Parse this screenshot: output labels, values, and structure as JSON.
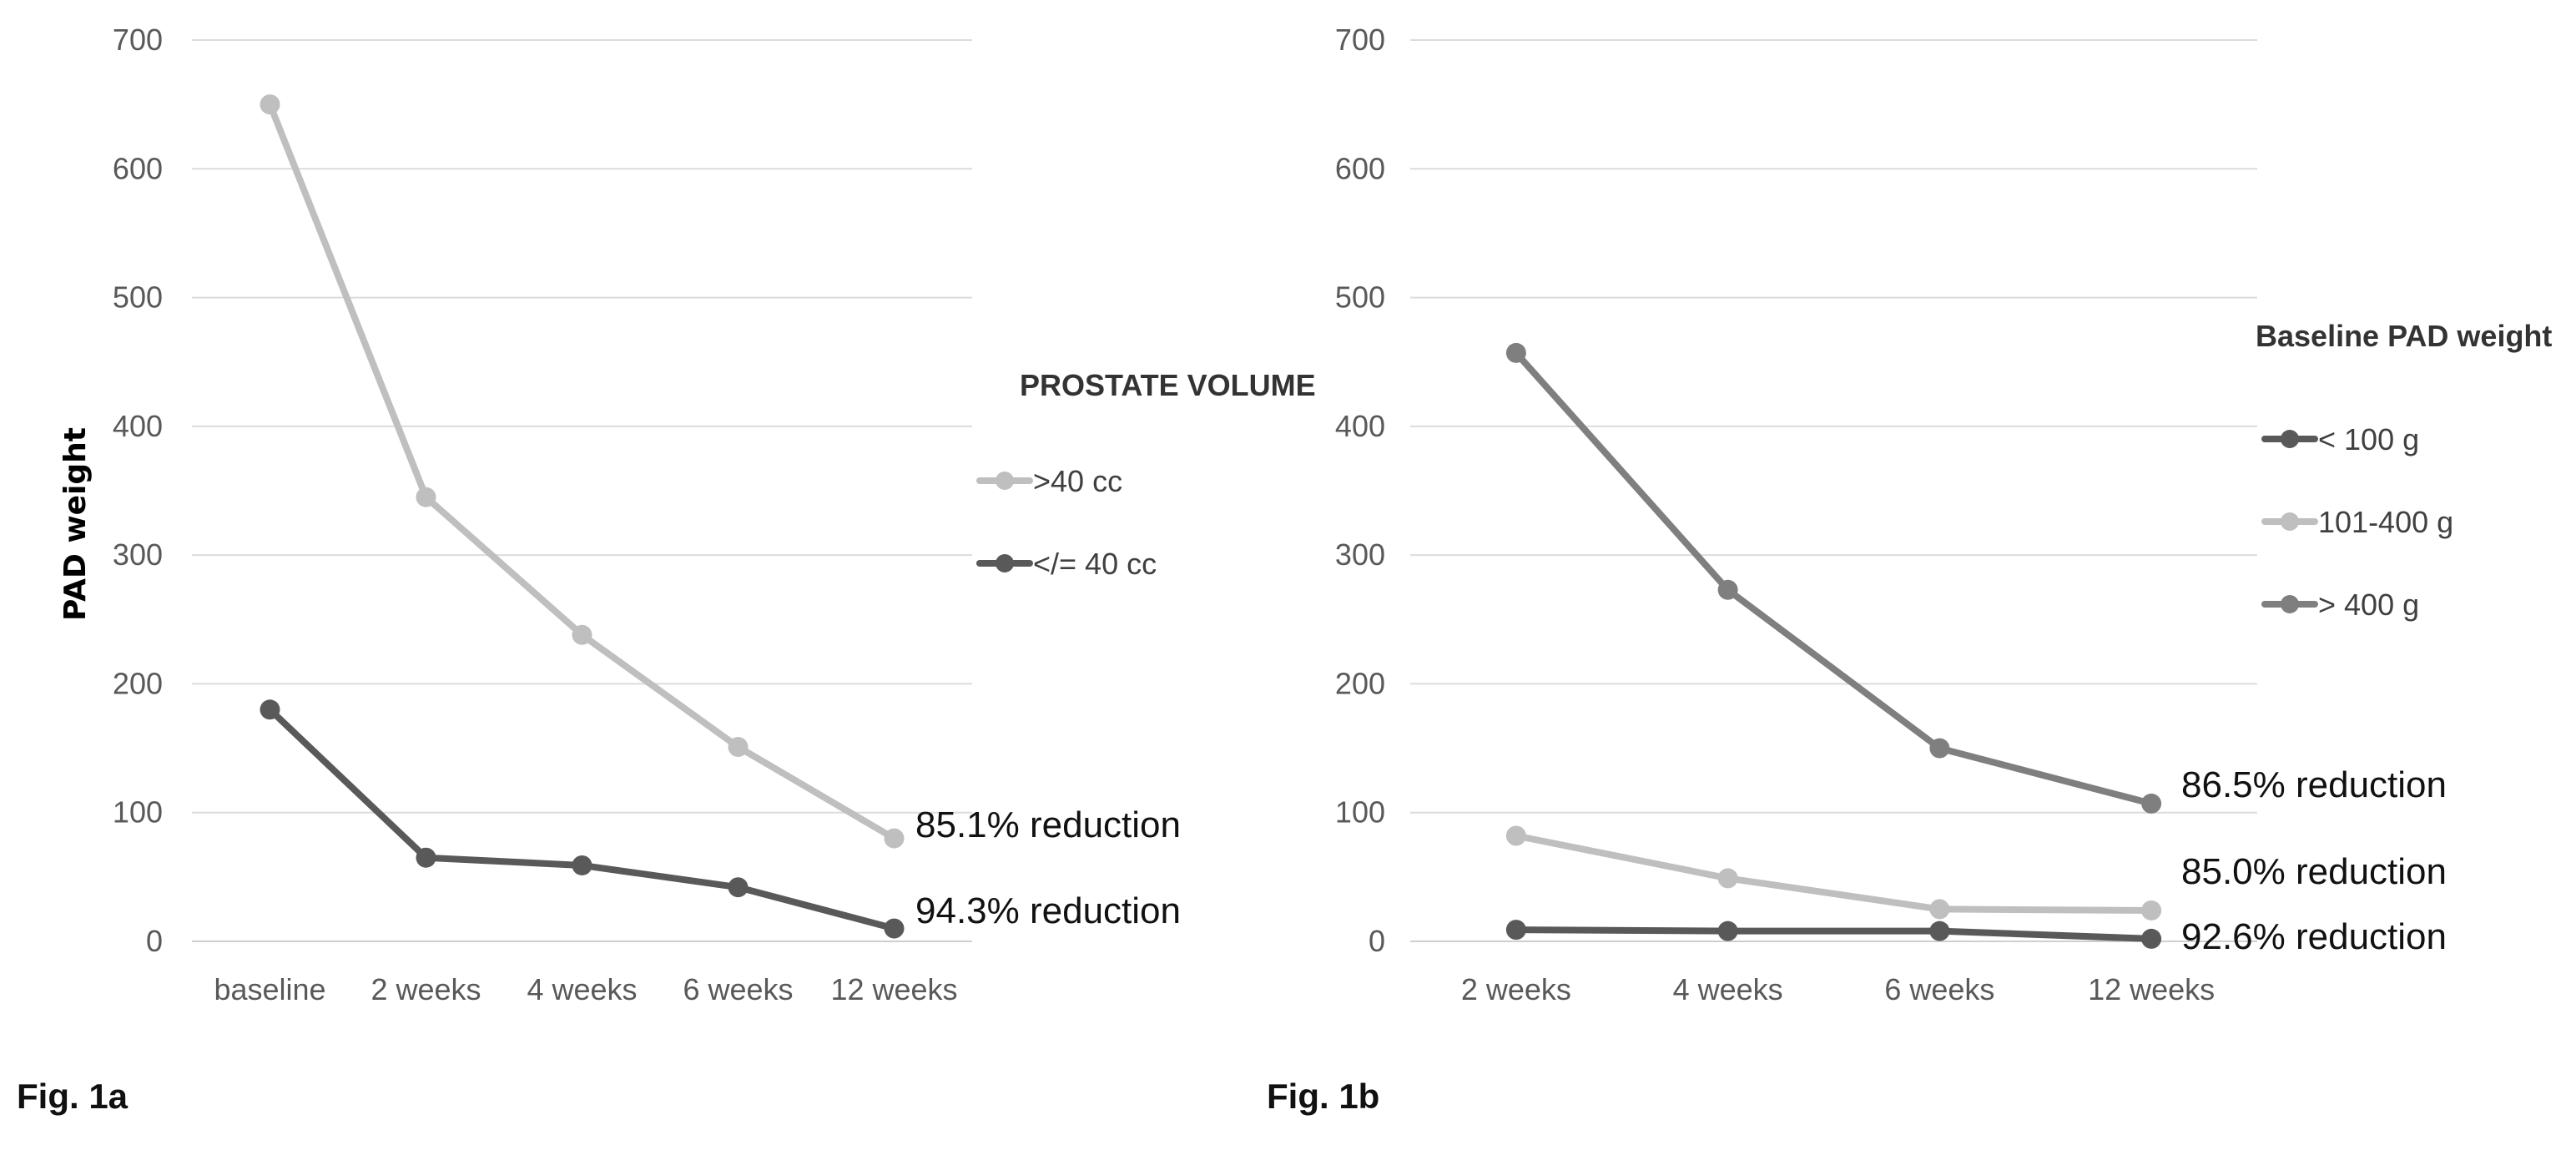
{
  "chart_data": [
    {
      "type": "line",
      "title": "",
      "figure_label": "Fig. 1a",
      "xlabel": "",
      "ylabel": "PAD weight",
      "ylim": [
        0,
        700
      ],
      "yticks": [
        0,
        100,
        200,
        300,
        400,
        500,
        600,
        700
      ],
      "grid": true,
      "legend_title": "PROSTATE VOLUME",
      "legend_position": "right",
      "categories": [
        "baseline",
        "2 weeks",
        "4 weeks",
        "6 weeks",
        "12 weeks"
      ],
      "series": [
        {
          "name": ">40 cc",
          "color": "#bfbfbf",
          "values": [
            650,
            345,
            238,
            151,
            80
          ],
          "annotation": "85.1% reduction"
        },
        {
          "name": "</= 40 cc",
          "color": "#595959",
          "values": [
            180,
            65,
            59,
            42,
            10
          ],
          "annotation": "94.3% reduction"
        }
      ]
    },
    {
      "type": "line",
      "title": "",
      "figure_label": "Fig. 1b",
      "xlabel": "",
      "ylabel": "",
      "ylim": [
        0,
        700
      ],
      "yticks": [
        0,
        100,
        200,
        300,
        400,
        500,
        600,
        700
      ],
      "grid": true,
      "legend_title": "Baseline PAD weight",
      "legend_position": "right",
      "categories": [
        "2 weeks",
        "4 weeks",
        "6 weeks",
        "12 weeks"
      ],
      "series": [
        {
          "name": "< 100 g",
          "color": "#595959",
          "values": [
            9,
            8,
            8,
            2
          ],
          "annotation": "92.6% reduction"
        },
        {
          "name": "101-400 g",
          "color": "#bfbfbf",
          "values": [
            82,
            49,
            25,
            24
          ],
          "annotation": "85.0% reduction"
        },
        {
          "name": "> 400 g",
          "color": "#7f7f7f",
          "values": [
            457,
            273,
            150,
            107
          ],
          "annotation": "86.5% reduction"
        }
      ]
    }
  ]
}
